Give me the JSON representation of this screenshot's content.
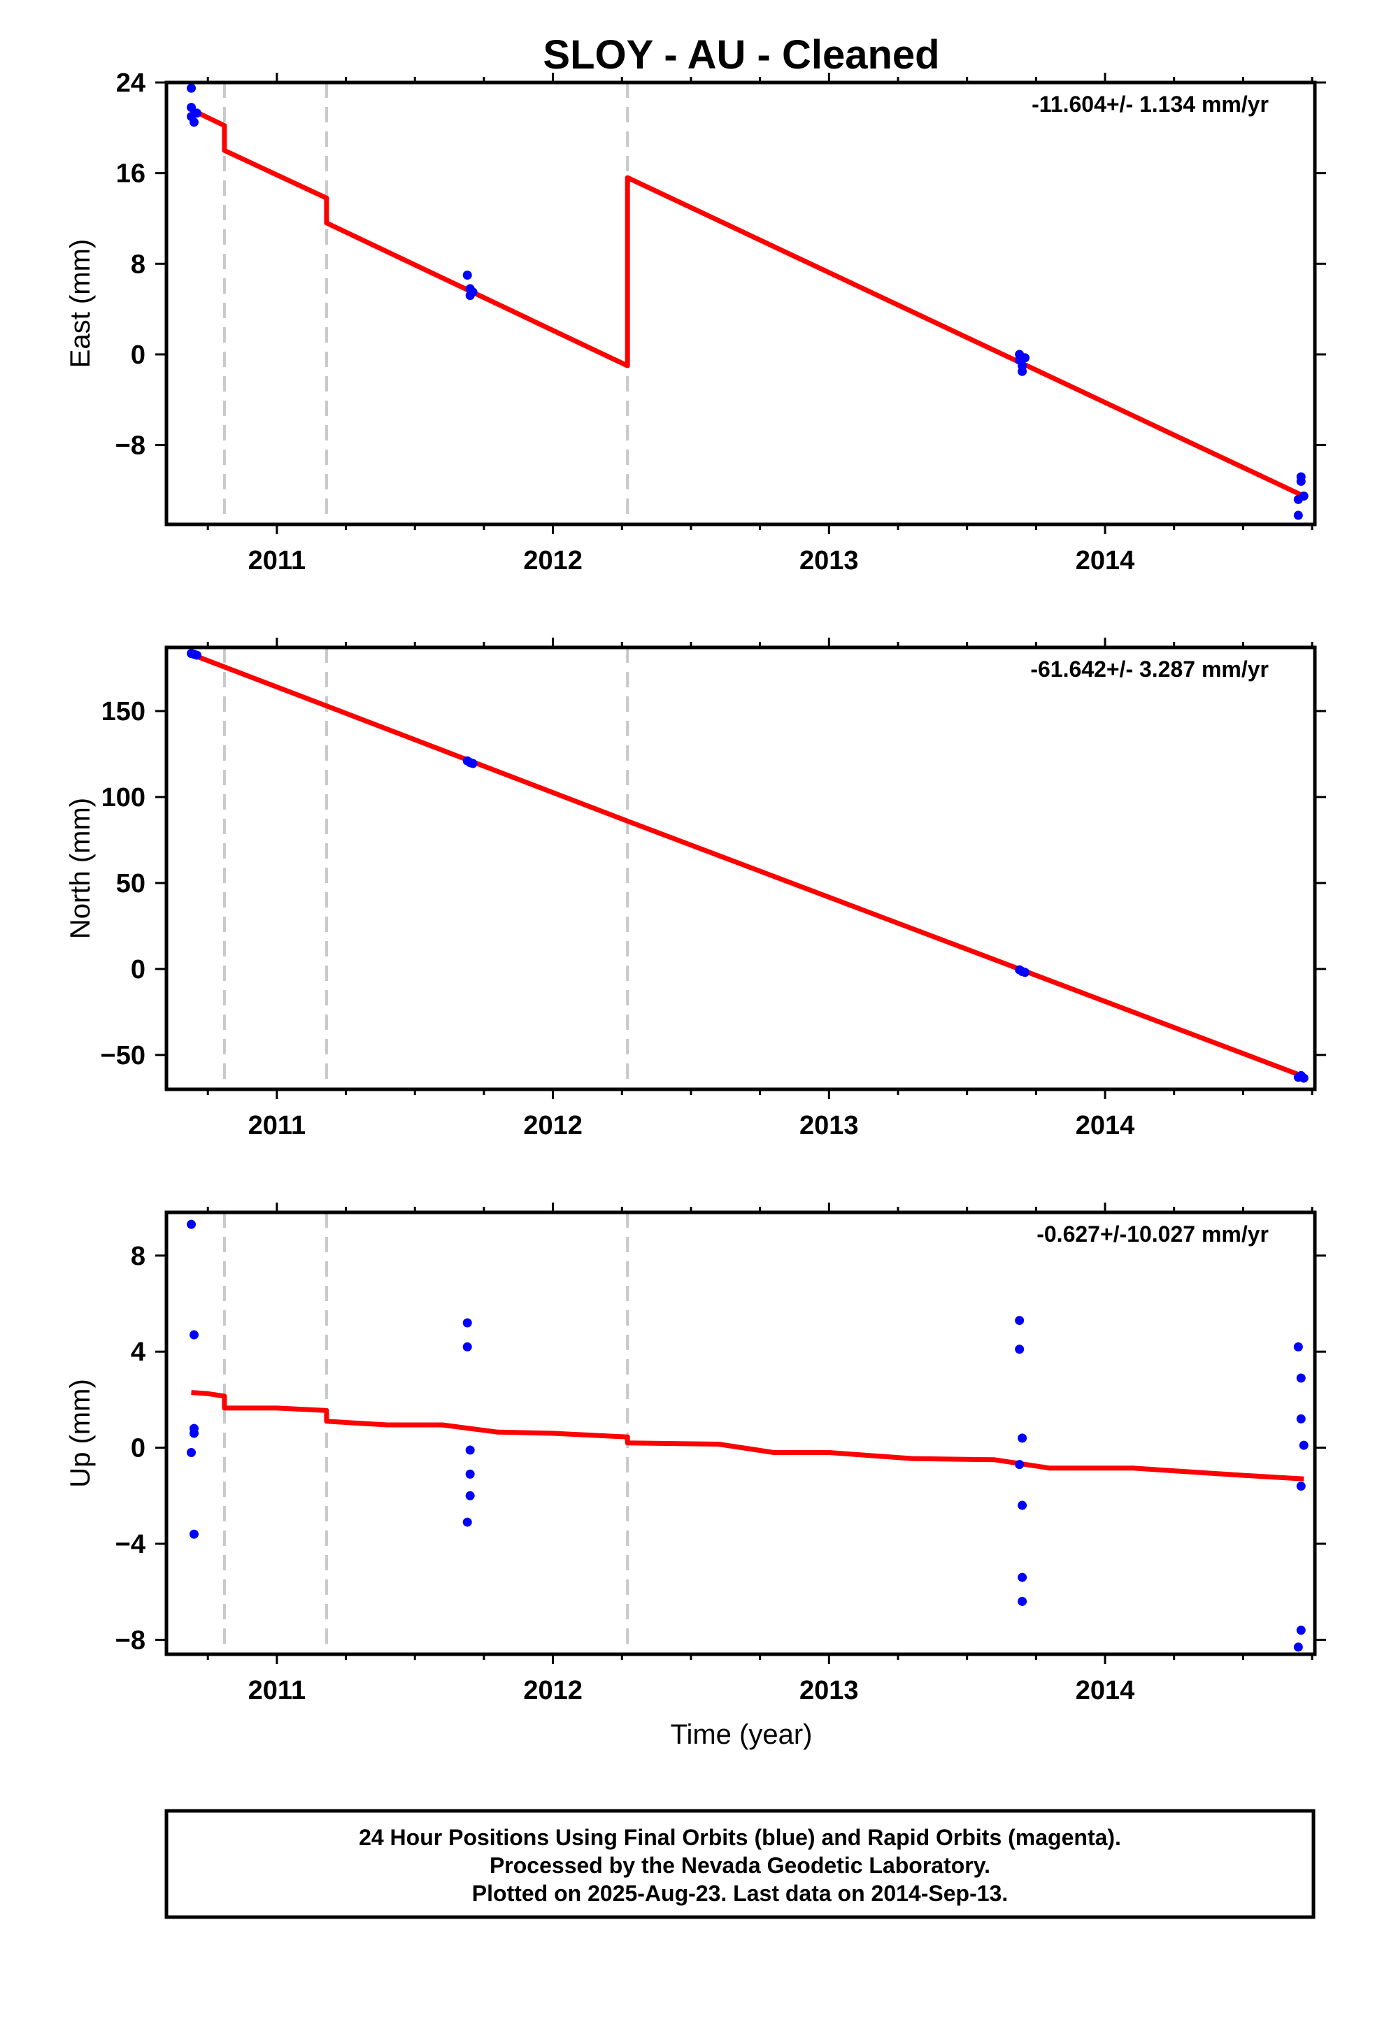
{
  "title": "SLOY  - AU - Cleaned",
  "xlabel": "Time (year)",
  "colors": {
    "model": "#ff0000",
    "final_orbits": "#0000ff",
    "rapid_orbits": "#ff00ff",
    "breaks": "#c8c8c8"
  },
  "x_ticks": [
    2011,
    2012,
    2013,
    2014
  ],
  "breaks": [
    2010.81,
    2011.18,
    2012.27
  ],
  "footer": {
    "line1": "24 Hour Positions Using Final Orbits (blue) and Rapid Orbits (magenta).",
    "line2": "Processed by the Nevada Geodetic Laboratory.",
    "line3": "Plotted on 2025-Aug-23. Last data on 2014-Sep-13."
  },
  "chart_data": [
    {
      "type": "scatter",
      "ylabel": "East (mm)",
      "rate": "-11.604+/- 1.134 mm/yr",
      "xlim": [
        2010.6,
        2014.76
      ],
      "ylim": [
        -15,
        24
      ],
      "yticks": [
        -8,
        0,
        8,
        16,
        24
      ],
      "model": [
        [
          2010.69,
          21.6
        ],
        [
          2010.81,
          20.2
        ],
        [
          2010.81,
          18.0
        ],
        [
          2011.18,
          13.8
        ],
        [
          2011.18,
          11.6
        ],
        [
          2012.27,
          -1.0
        ],
        [
          2012.27,
          15.6
        ],
        [
          2014.72,
          -12.5
        ]
      ],
      "points": [
        [
          2010.69,
          23.5
        ],
        [
          2010.69,
          21.8
        ],
        [
          2010.69,
          21.0
        ],
        [
          2010.7,
          20.5
        ],
        [
          2010.71,
          21.3
        ],
        [
          2011.69,
          7.0
        ],
        [
          2011.7,
          5.8
        ],
        [
          2011.7,
          5.2
        ],
        [
          2011.71,
          5.5
        ],
        [
          2013.69,
          0.0
        ],
        [
          2013.69,
          -0.5
        ],
        [
          2013.7,
          -1.5
        ],
        [
          2013.7,
          -1.0
        ],
        [
          2013.71,
          -0.3
        ],
        [
          2014.7,
          -12.8
        ],
        [
          2014.7,
          -14.2
        ],
        [
          2014.71,
          -10.8
        ],
        [
          2014.71,
          -11.2
        ],
        [
          2014.72,
          -12.5
        ]
      ]
    },
    {
      "type": "scatter",
      "ylabel": "North (mm)",
      "rate": "-61.642+/- 3.287 mm/yr",
      "xlim": [
        2010.6,
        2014.76
      ],
      "ylim": [
        -70,
        187
      ],
      "yticks": [
        -50,
        0,
        50,
        100,
        150
      ],
      "model": [
        [
          2010.69,
          183.0
        ],
        [
          2011.18,
          153.0
        ],
        [
          2012.27,
          86.0
        ],
        [
          2014.72,
          -62.5
        ]
      ],
      "points": [
        [
          2010.69,
          183.5
        ],
        [
          2010.7,
          183.0
        ],
        [
          2010.71,
          182.5
        ],
        [
          2011.69,
          121.0
        ],
        [
          2011.7,
          120.0
        ],
        [
          2011.71,
          119.5
        ],
        [
          2013.69,
          -0.5
        ],
        [
          2013.7,
          -1.5
        ],
        [
          2013.71,
          -2.0
        ],
        [
          2014.7,
          -63.0
        ],
        [
          2014.71,
          -62.0
        ],
        [
          2014.72,
          -63.5
        ]
      ]
    },
    {
      "type": "scatter",
      "ylabel": "Up (mm)",
      "rate": "-0.627+/-10.027 mm/yr",
      "xlim": [
        2010.6,
        2014.76
      ],
      "ylim": [
        -8.6,
        9.8
      ],
      "yticks": [
        -8,
        -4,
        0,
        4,
        8
      ],
      "model": [
        [
          2010.69,
          2.3
        ],
        [
          2010.75,
          2.25
        ],
        [
          2010.81,
          2.15
        ],
        [
          2010.81,
          1.65
        ],
        [
          2011.0,
          1.65
        ],
        [
          2011.18,
          1.55
        ],
        [
          2011.18,
          1.1
        ],
        [
          2011.4,
          0.95
        ],
        [
          2011.6,
          0.95
        ],
        [
          2011.8,
          0.65
        ],
        [
          2012.0,
          0.6
        ],
        [
          2012.27,
          0.45
        ],
        [
          2012.27,
          0.2
        ],
        [
          2012.6,
          0.15
        ],
        [
          2012.8,
          -0.2
        ],
        [
          2013.0,
          -0.2
        ],
        [
          2013.3,
          -0.45
        ],
        [
          2013.6,
          -0.5
        ],
        [
          2013.8,
          -0.85
        ],
        [
          2014.1,
          -0.85
        ],
        [
          2014.5,
          -1.15
        ],
        [
          2014.72,
          -1.3
        ]
      ],
      "points": [
        [
          2010.69,
          9.3
        ],
        [
          2010.7,
          4.7
        ],
        [
          2010.7,
          0.8
        ],
        [
          2010.7,
          0.6
        ],
        [
          2010.69,
          -0.2
        ],
        [
          2010.7,
          -3.6
        ],
        [
          2011.69,
          5.2
        ],
        [
          2011.69,
          4.2
        ],
        [
          2011.7,
          -0.1
        ],
        [
          2011.7,
          -1.1
        ],
        [
          2011.7,
          -2.0
        ],
        [
          2011.69,
          -3.1
        ],
        [
          2013.69,
          5.3
        ],
        [
          2013.69,
          4.1
        ],
        [
          2013.7,
          0.4
        ],
        [
          2013.69,
          -0.7
        ],
        [
          2013.7,
          -2.4
        ],
        [
          2013.7,
          -5.4
        ],
        [
          2013.7,
          -6.4
        ],
        [
          2014.7,
          4.2
        ],
        [
          2014.71,
          2.9
        ],
        [
          2014.71,
          1.2
        ],
        [
          2014.72,
          0.1
        ],
        [
          2014.71,
          -1.6
        ],
        [
          2014.71,
          -7.6
        ],
        [
          2014.7,
          -8.3
        ]
      ]
    }
  ]
}
